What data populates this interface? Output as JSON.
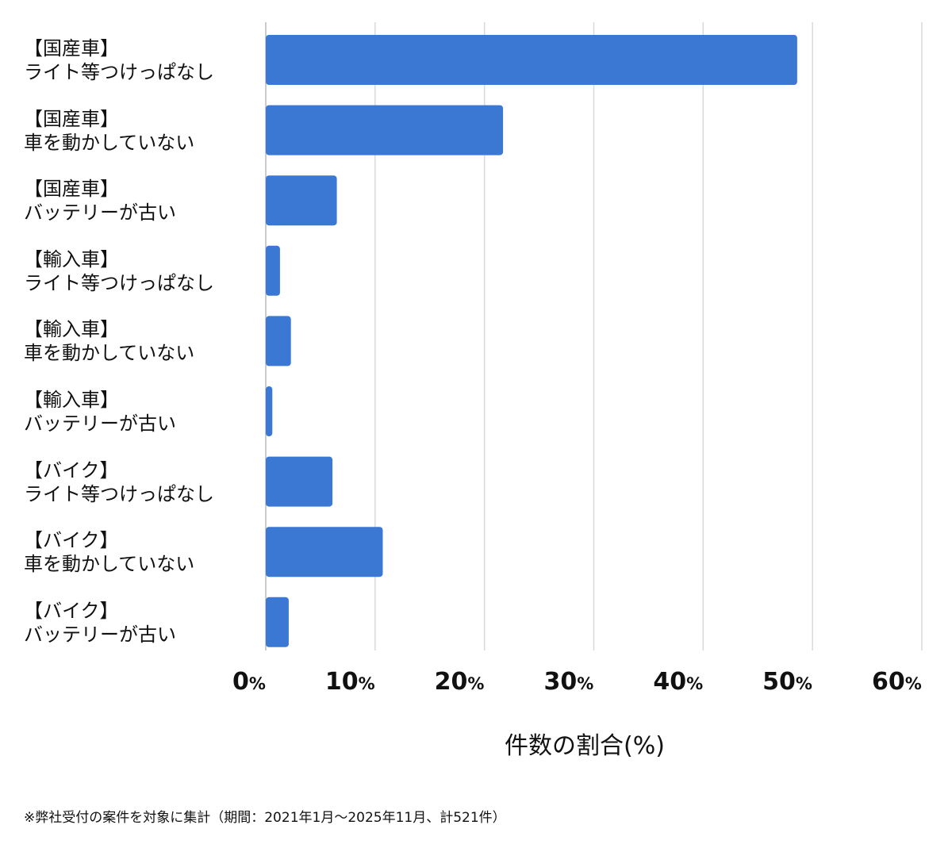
{
  "chart_data": {
    "type": "bar",
    "orientation": "horizontal",
    "categories": [
      [
        "【国産車】",
        "ライト等つけっぱなし"
      ],
      [
        "【国産車】",
        "車を動かしていない"
      ],
      [
        "【国産車】",
        "バッテリーが古い"
      ],
      [
        "【輸入車】",
        "ライト等つけっぱなし"
      ],
      [
        "【輸入車】",
        "車を動かしていない"
      ],
      [
        "【輸入車】",
        "バッテリーが古い"
      ],
      [
        "【バイク】",
        "ライト等つけっぱなし"
      ],
      [
        "【バイク】",
        "車を動かしていない"
      ],
      [
        "【バイク】",
        "バッテリーが古い"
      ]
    ],
    "values": [
      48.6,
      21.7,
      6.5,
      1.3,
      2.3,
      0.6,
      6.1,
      10.7,
      2.1
    ],
    "xlabel": "件数の割合(%)",
    "xlim": [
      0,
      60
    ],
    "ticks": [
      0,
      10,
      20,
      30,
      40,
      50,
      60
    ],
    "tick_unit": "%",
    "grid": true,
    "bar_color": "#3b78d4",
    "grid_color": "#d9d9d9"
  },
  "footnote": "※弊社受付の案件を対象に集計（期間：2021年1月〜2025年11月、計521件）"
}
